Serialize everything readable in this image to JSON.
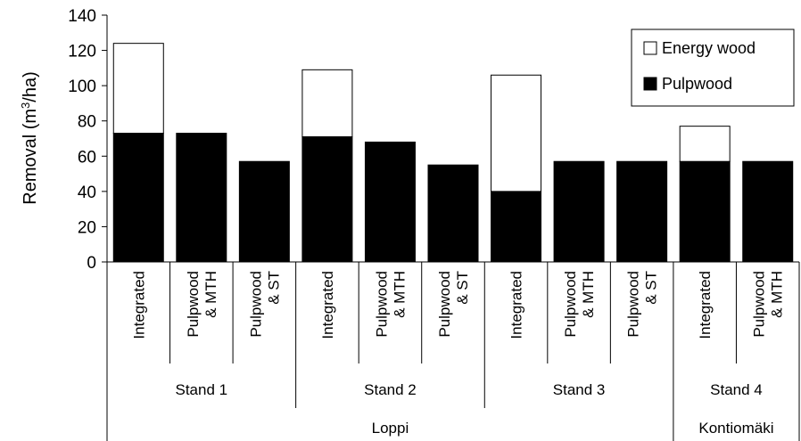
{
  "chart_data": {
    "type": "bar",
    "stacked": true,
    "title": "",
    "ylabel": {
      "pre": "Removal (m",
      "sup": "3",
      "post": "/ha)"
    },
    "ylim": [
      0,
      140
    ],
    "yticks": [
      0,
      20,
      40,
      60,
      80,
      100,
      120,
      140
    ],
    "grid": false,
    "legend_position": "top-right",
    "categories": [
      [
        "Integrated"
      ],
      [
        "Pulpwood",
        "& MTH"
      ],
      [
        "Pulpwood",
        "& ST"
      ],
      [
        "Integrated"
      ],
      [
        "Pulpwood",
        "& MTH"
      ],
      [
        "Pulpwood",
        "& ST"
      ],
      [
        "Integrated"
      ],
      [
        "Pulpwood",
        "& MTH"
      ],
      [
        "Pulpwood",
        "& ST"
      ],
      [
        "Integrated"
      ],
      [
        "Pulpwood",
        "& MTH"
      ]
    ],
    "groups": [
      {
        "label": "Stand 1",
        "span": 3
      },
      {
        "label": "Stand 2",
        "span": 3
      },
      {
        "label": "Stand 3",
        "span": 3
      },
      {
        "label": "Stand 4",
        "span": 2
      }
    ],
    "sites": [
      {
        "label": "Loppi",
        "span": 9
      },
      {
        "label": "Kontiomäki",
        "span": 2
      }
    ],
    "series": [
      {
        "name": "Pulpwood",
        "color": "#000000",
        "values": [
          73,
          73,
          57,
          71,
          68,
          55,
          40,
          57,
          57,
          57,
          57
        ]
      },
      {
        "name": "Energy wood",
        "color": "#ffffff",
        "values": [
          51,
          0,
          0,
          38,
          0,
          0,
          66,
          0,
          0,
          20,
          0
        ]
      }
    ],
    "legend": [
      {
        "name": "Energy wood",
        "color": "#ffffff"
      },
      {
        "name": "Pulpwood",
        "color": "#000000"
      }
    ]
  }
}
